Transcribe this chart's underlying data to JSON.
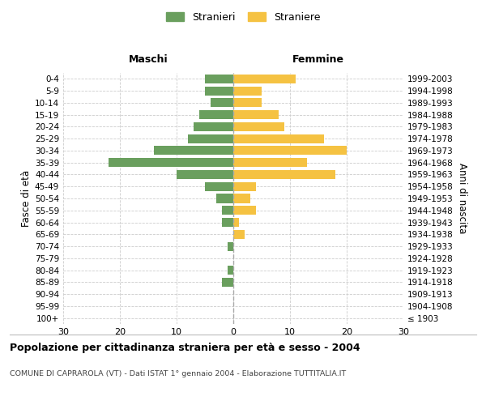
{
  "age_groups": [
    "100+",
    "95-99",
    "90-94",
    "85-89",
    "80-84",
    "75-79",
    "70-74",
    "65-69",
    "60-64",
    "55-59",
    "50-54",
    "45-49",
    "40-44",
    "35-39",
    "30-34",
    "25-29",
    "20-24",
    "15-19",
    "10-14",
    "5-9",
    "0-4"
  ],
  "birth_years": [
    "≤ 1903",
    "1904-1908",
    "1909-1913",
    "1914-1918",
    "1919-1923",
    "1924-1928",
    "1929-1933",
    "1934-1938",
    "1939-1943",
    "1944-1948",
    "1949-1953",
    "1954-1958",
    "1959-1963",
    "1964-1968",
    "1969-1973",
    "1974-1978",
    "1979-1983",
    "1984-1988",
    "1989-1993",
    "1994-1998",
    "1999-2003"
  ],
  "males": [
    0,
    0,
    0,
    2,
    1,
    0,
    1,
    0,
    2,
    2,
    3,
    5,
    10,
    22,
    14,
    8,
    7,
    6,
    4,
    5,
    5
  ],
  "females": [
    0,
    0,
    0,
    0,
    0,
    0,
    0,
    2,
    1,
    4,
    3,
    4,
    18,
    13,
    20,
    16,
    9,
    8,
    5,
    5,
    11
  ],
  "male_color": "#6a9f5e",
  "female_color": "#f5c242",
  "background_color": "#ffffff",
  "grid_color": "#cccccc",
  "title": "Popolazione per cittadinanza straniera per età e sesso - 2004",
  "subtitle": "COMUNE DI CAPRAROLA (VT) - Dati ISTAT 1° gennaio 2004 - Elaborazione TUTTITALIA.IT",
  "xlabel_left": "Maschi",
  "xlabel_right": "Femmine",
  "ylabel_left": "Fasce di età",
  "ylabel_right": "Anni di nascita",
  "legend_stranieri": "Stranieri",
  "legend_straniere": "Straniere",
  "xlim": 30
}
